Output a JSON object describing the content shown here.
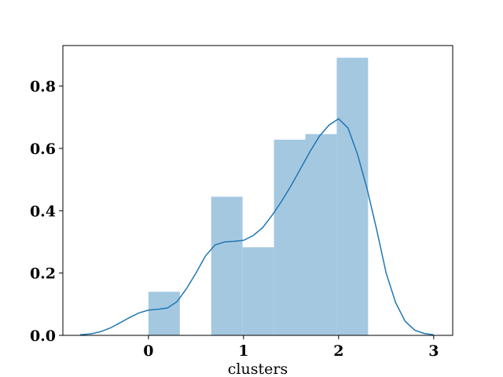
{
  "chart_data": {
    "type": "bar",
    "title": "",
    "xlabel": "clusters",
    "ylabel": "",
    "xlim": [
      -0.9,
      3.2
    ],
    "ylim": [
      0,
      0.93
    ],
    "grid": false,
    "bar_color": "#a5c8e1",
    "line_color": "#1f77b4",
    "x_ticks": [
      0,
      1,
      2,
      3
    ],
    "x_tick_labels": [
      "0",
      "1",
      "2",
      "3"
    ],
    "y_ticks": [
      0.0,
      0.2,
      0.4,
      0.6,
      0.8
    ],
    "y_tick_labels": [
      "0.0",
      "0.2",
      "0.4",
      "0.6",
      "0.8"
    ],
    "histogram": {
      "bins": [
        {
          "x0": 0.0,
          "x1": 0.33,
          "value": 0.14
        },
        {
          "x0": 0.33,
          "x1": 0.66,
          "value": 0.0
        },
        {
          "x0": 0.66,
          "x1": 0.99,
          "value": 0.445
        },
        {
          "x0": 0.99,
          "x1": 1.32,
          "value": 0.283
        },
        {
          "x0": 1.32,
          "x1": 1.65,
          "value": 0.628
        },
        {
          "x0": 1.65,
          "x1": 1.98,
          "value": 0.646
        },
        {
          "x0": 1.98,
          "x1": 2.31,
          "value": 0.891
        }
      ]
    },
    "kde": {
      "x": [
        -0.72,
        -0.6,
        -0.5,
        -0.4,
        -0.3,
        -0.2,
        -0.1,
        0.0,
        0.1,
        0.2,
        0.3,
        0.4,
        0.5,
        0.6,
        0.7,
        0.8,
        0.9,
        1.0,
        1.1,
        1.2,
        1.3,
        1.4,
        1.5,
        1.6,
        1.7,
        1.8,
        1.9,
        2.0,
        2.1,
        2.2,
        2.3,
        2.4,
        2.5,
        2.6,
        2.7,
        2.8,
        2.9,
        3.0
      ],
      "y": [
        0.002,
        0.005,
        0.012,
        0.024,
        0.04,
        0.057,
        0.072,
        0.081,
        0.084,
        0.088,
        0.108,
        0.15,
        0.2,
        0.255,
        0.29,
        0.3,
        0.302,
        0.305,
        0.32,
        0.345,
        0.385,
        0.43,
        0.48,
        0.535,
        0.59,
        0.64,
        0.675,
        0.695,
        0.665,
        0.58,
        0.47,
        0.34,
        0.2,
        0.105,
        0.045,
        0.017,
        0.006,
        0.002
      ]
    }
  }
}
